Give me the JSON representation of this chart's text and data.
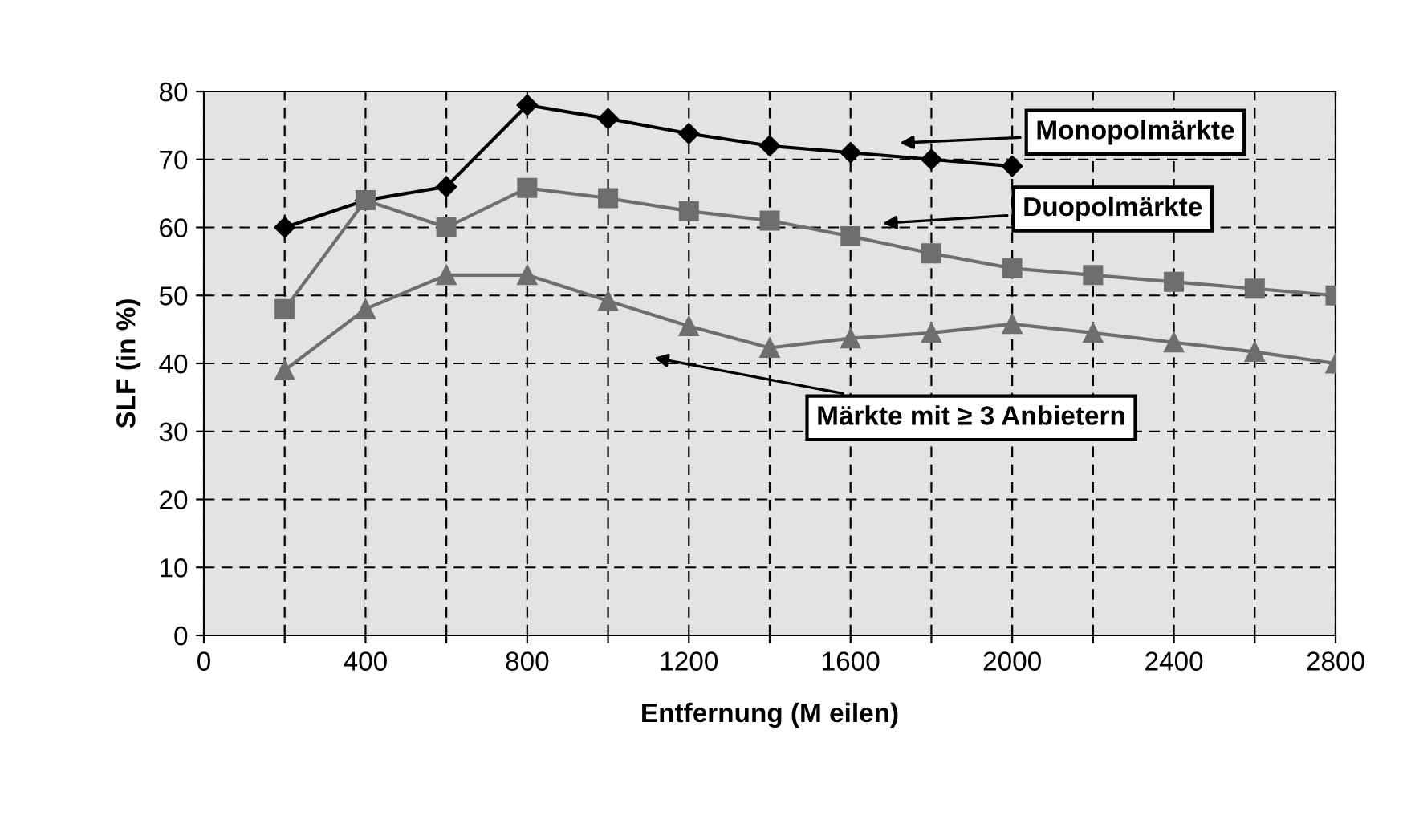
{
  "chart_data": {
    "type": "line",
    "xlabel": "Entfernung (M eilen)",
    "ylabel": "SLF (in %)",
    "xlim": [
      0,
      2800
    ],
    "xticks": [
      0,
      {
        "value": 200,
        "label": null
      },
      400,
      {
        "value": 600,
        "label": null
      },
      800,
      {
        "value": 1000,
        "label": null
      },
      1200,
      {
        "value": 1400,
        "label": null
      },
      1600,
      {
        "value": 1800,
        "label": null
      },
      2000,
      {
        "value": 2200,
        "label": null
      },
      2400,
      {
        "value": 2600,
        "label": null
      },
      2800
    ],
    "ylim": [
      0,
      80
    ],
    "yticks": [
      0,
      10,
      20,
      30,
      40,
      50,
      60,
      70,
      80
    ],
    "grid": true,
    "series": [
      {
        "color": "#000000",
        "marker": "diamond",
        "x": [
          200,
          400,
          600,
          800,
          1000,
          1200,
          1400,
          1600,
          1800,
          2000
        ],
        "values": [
          60,
          64,
          66,
          78,
          76,
          73.8,
          72,
          71,
          70,
          69
        ]
      },
      {
        "color": "#6e6e6e",
        "marker": "square",
        "x": [
          200,
          400,
          600,
          800,
          1000,
          1200,
          1400,
          1600,
          1800,
          2000,
          2200,
          2400,
          2600,
          2800
        ],
        "values": [
          48,
          64,
          60,
          65.8,
          64.3,
          62.4,
          61,
          58.7,
          56.2,
          54,
          53,
          52,
          51,
          50
        ]
      },
      {
        "color": "#6e6e6e",
        "marker": "triangle",
        "x": [
          200,
          400,
          600,
          800,
          1000,
          1200,
          1400,
          1600,
          1800,
          2000,
          2200,
          2400,
          2600,
          2800
        ],
        "values": [
          39,
          48,
          53,
          53,
          49.2,
          45.5,
          42.3,
          43.7,
          44.5,
          45.8,
          44.5,
          43.1,
          41.7,
          40
        ]
      }
    ],
    "annotations": [
      "Monopolmärkte",
      "Duopolmärkte",
      "Märkte mit ≥ 3 Anbietern"
    ]
  }
}
